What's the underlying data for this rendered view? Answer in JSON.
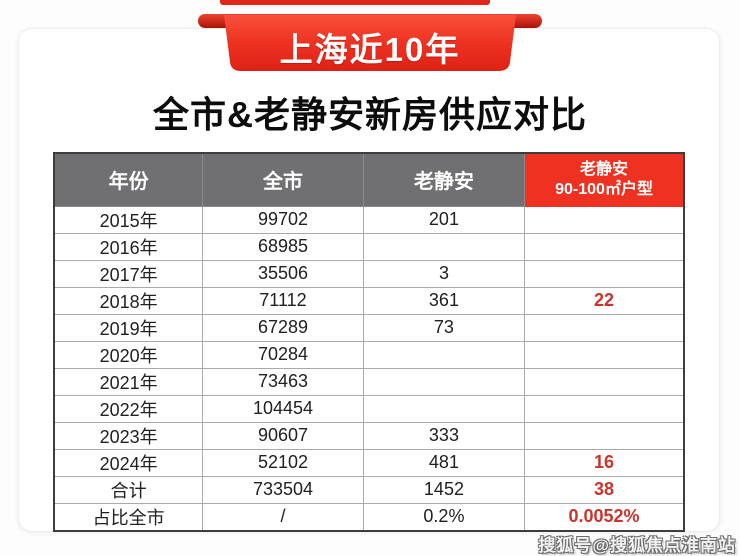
{
  "banner": {
    "label": "上海近10年"
  },
  "title": "全市&老静安新房供应对比",
  "watermark": "搜狐号@搜狐焦点淮南站",
  "table_header4": {
    "line1": "老静安",
    "line2": "90-100㎡户型"
  },
  "colors": {
    "banner_red": "#e8271b",
    "banner_dark_red": "#a81208",
    "header_bg": "#707073",
    "header_highlight_bg": "#ee3120",
    "highlight_text": "#cc342c",
    "outer_border": "#3d3d3d",
    "inner_border": "#a9a9a9"
  },
  "chart_data": {
    "type": "table",
    "banner": "上海近10年",
    "title": "全市&老静安新房供应对比",
    "columns": [
      "年份",
      "全市",
      "老静安",
      "老静安 90-100㎡户型"
    ],
    "rows": [
      [
        "2015年",
        "99702",
        "201",
        ""
      ],
      [
        "2016年",
        "68985",
        "",
        ""
      ],
      [
        "2017年",
        "35506",
        "3",
        ""
      ],
      [
        "2018年",
        "71112",
        "361",
        "22"
      ],
      [
        "2019年",
        "67289",
        "73",
        ""
      ],
      [
        "2020年",
        "70284",
        "",
        ""
      ],
      [
        "2021年",
        "73463",
        "",
        ""
      ],
      [
        "2022年",
        "104454",
        "",
        ""
      ],
      [
        "2023年",
        "90607",
        "333",
        ""
      ],
      [
        "2024年",
        "52102",
        "481",
        "16"
      ],
      [
        "合计",
        "733504",
        "1452",
        "38"
      ],
      [
        "占比全市",
        "/",
        "0.2%",
        "0.0052%"
      ]
    ],
    "notes": "last column non-empty values rendered in red; header of last column rendered on red background"
  }
}
